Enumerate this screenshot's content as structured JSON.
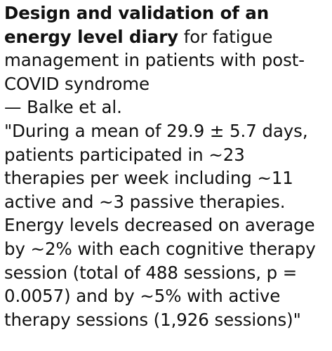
{
  "post": {
    "title_bold": "Design and validation of an energy level diary",
    "title_rest": " for fatigue management in patients with post-COVID syndrome",
    "author_line": "— Balke et al.",
    "quote": "\"During a mean of 29.9 ± 5.7 days, patients participated in ~23 therapies per week including ~11 active and ~3 passive therapies. Energy levels decreased on average by ~2% with each cognitive therapy session (total of 488 sessions, p = 0.0057) and by ~5% with active therapy sessions (1,926 sessions)\""
  }
}
